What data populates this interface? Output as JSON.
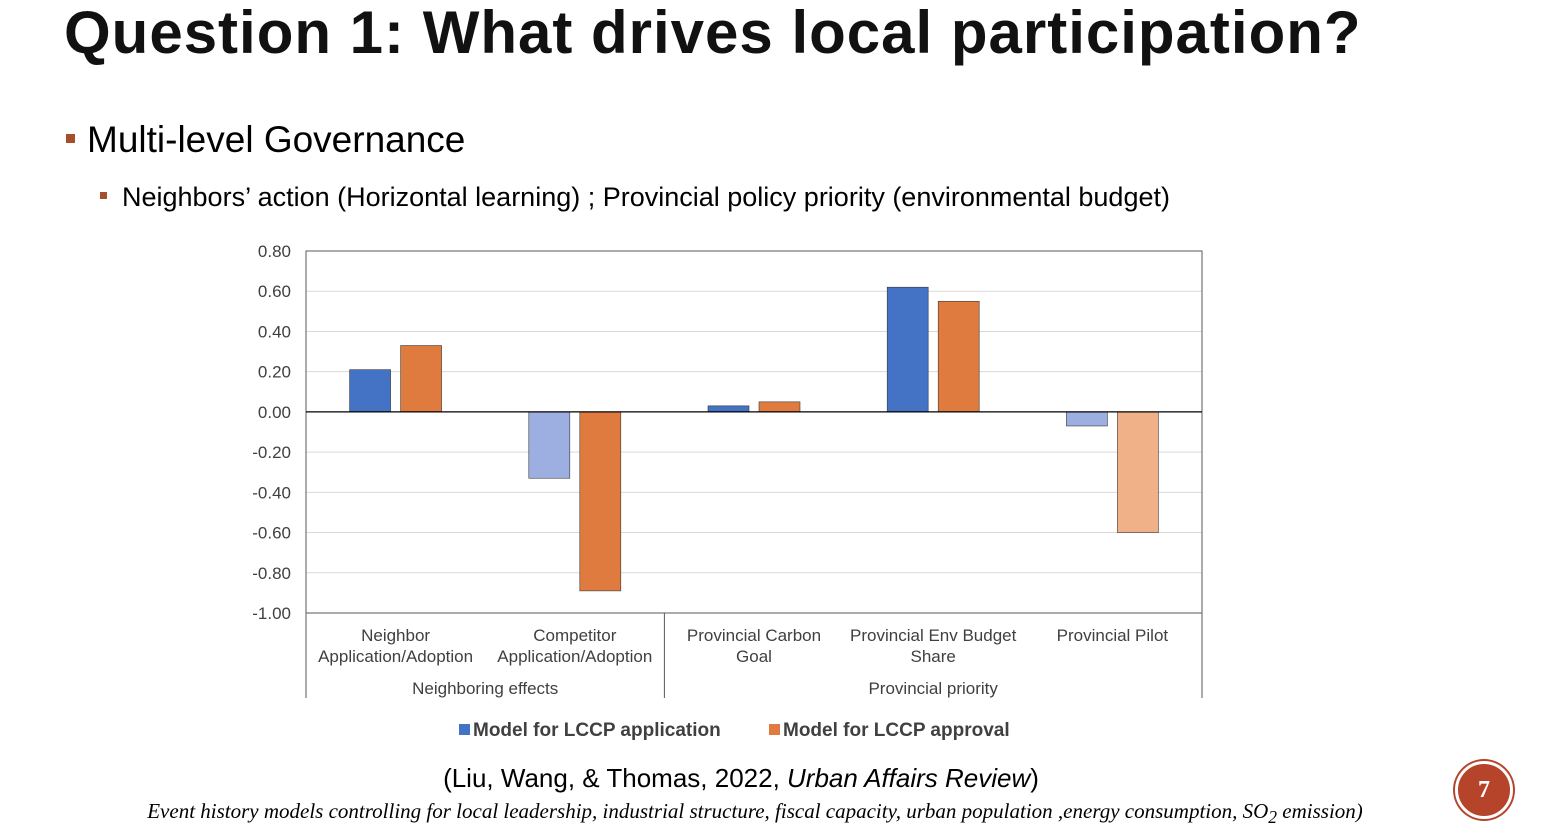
{
  "slide": {
    "title": "Question 1: What drives local participation?",
    "bullet_1": "Multi-level Governance",
    "bullet_2": "Neighbors’ action (Horizontal learning) ; Provincial policy priority (environmental budget)",
    "citation_prefix": "(Liu, Wang, & Thomas, 2022, ",
    "citation_journal": "Urban Affairs Review",
    "citation_suffix": ")",
    "note_prefix": "Event history models controlling for local leadership, industrial structure, fiscal capacity, urban population ,energy consumption, SO",
    "note_subscript": "2",
    "note_suffix": " emission)",
    "page_number": "7"
  },
  "colors": {
    "accent": "#a64d2a",
    "application": "#4472c4",
    "application_light": "#9dafe0",
    "approval": "#e07b3f",
    "approval_light": "#f0b088"
  },
  "chart_data": {
    "type": "bar",
    "categories": [
      {
        "line1": "Neighbor",
        "line2": "Application/Adoption"
      },
      {
        "line1": "Competitor",
        "line2": "Application/Adoption"
      },
      {
        "line1": "Provincial Carbon",
        "line2": "Goal"
      },
      {
        "line1": "Provincial Env Budget",
        "line2": "Share"
      },
      {
        "line1": "Provincial Pilot",
        "line2": ""
      }
    ],
    "groups": [
      {
        "label": "Neighboring effects",
        "from": 0,
        "to": 1
      },
      {
        "label": "Provincial priority",
        "from": 2,
        "to": 4
      }
    ],
    "series": [
      {
        "name": "Model for LCCP application",
        "values": [
          0.21,
          -0.33,
          0.03,
          0.62,
          -0.07
        ],
        "light": [
          false,
          true,
          false,
          false,
          true
        ]
      },
      {
        "name": "Model for LCCP approval",
        "values": [
          0.33,
          -0.89,
          0.05,
          0.55,
          -0.6
        ],
        "light": [
          false,
          false,
          false,
          false,
          true
        ]
      }
    ],
    "ylim": [
      -1.0,
      0.8
    ],
    "yticks": [
      "0.80",
      "0.60",
      "0.40",
      "0.20",
      "0.00",
      "-0.20",
      "-0.40",
      "-0.60",
      "-0.80",
      "-1.00"
    ],
    "grid": true,
    "legend_position": "bottom"
  }
}
